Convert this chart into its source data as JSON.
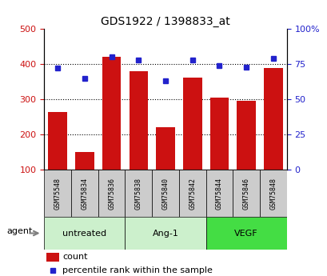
{
  "title": "GDS1922 / 1398833_at",
  "samples": [
    "GSM75548",
    "GSM75834",
    "GSM75836",
    "GSM75838",
    "GSM75840",
    "GSM75842",
    "GSM75844",
    "GSM75846",
    "GSM75848"
  ],
  "counts": [
    265,
    150,
    420,
    380,
    220,
    362,
    305,
    295,
    388
  ],
  "percentiles": [
    72,
    65,
    80,
    78,
    63,
    78,
    74,
    73,
    79
  ],
  "group_info": [
    {
      "label": "untreated",
      "start": 0,
      "end": 2,
      "color": "#ccf0cc"
    },
    {
      "label": "Ang-1",
      "start": 3,
      "end": 5,
      "color": "#ccf0cc"
    },
    {
      "label": "VEGF",
      "start": 6,
      "end": 8,
      "color": "#44dd44"
    }
  ],
  "bar_color": "#cc1111",
  "dot_color": "#2222cc",
  "left_ylim": [
    100,
    500
  ],
  "right_ylim": [
    0,
    100
  ],
  "left_yticks": [
    100,
    200,
    300,
    400,
    500
  ],
  "right_yticks": [
    0,
    25,
    50,
    75,
    100
  ],
  "right_yticklabels": [
    "0",
    "25",
    "50",
    "75",
    "100%"
  ],
  "dotted_lines": [
    200,
    300,
    400
  ],
  "agent_label": "agent",
  "legend_count": "count",
  "legend_percentile": "percentile rank within the sample",
  "sample_box_color": "#cccccc",
  "figsize": [
    4.1,
    3.45
  ],
  "dpi": 100
}
